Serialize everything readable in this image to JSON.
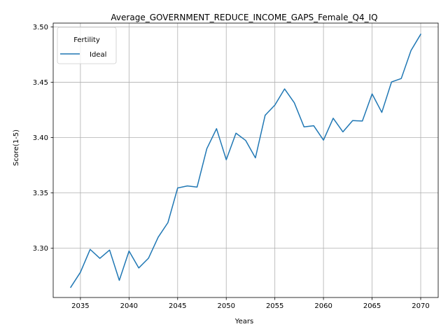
{
  "chart_data": {
    "type": "line",
    "title": "Average_GOVERNMENT_REDUCE_INCOME_GAPS_Female_Q4_IQ",
    "xlabel": "Years",
    "ylabel": "Score(1-5)",
    "xlim": [
      2032.2,
      2071.8
    ],
    "ylim": [
      3.2555,
      3.5035
    ],
    "xticks": [
      2035,
      2040,
      2045,
      2050,
      2055,
      2060,
      2065,
      2070
    ],
    "xtick_labels": [
      "2035",
      "2040",
      "2045",
      "2050",
      "2055",
      "2060",
      "2065",
      "2070"
    ],
    "yticks": [
      3.3,
      3.35,
      3.4,
      3.45,
      3.5
    ],
    "ytick_labels": [
      "3.30",
      "3.35",
      "3.40",
      "3.45",
      "3.50"
    ],
    "grid": true,
    "legend": {
      "title": "Fertility",
      "position": "upper-left"
    },
    "series": [
      {
        "name": "Ideal",
        "color": "#1f77b4",
        "x": [
          2034,
          2035,
          2036,
          2037,
          2038,
          2039,
          2040,
          2041,
          2042,
          2043,
          2044,
          2045,
          2046,
          2047,
          2048,
          2049,
          2050,
          2051,
          2052,
          2053,
          2054,
          2055,
          2056,
          2057,
          2058,
          2059,
          2060,
          2061,
          2062,
          2063,
          2064,
          2065,
          2066,
          2067,
          2068,
          2069,
          2070
        ],
        "y": [
          3.2647,
          3.2783,
          3.299,
          3.2909,
          3.2984,
          3.271,
          3.2975,
          3.2822,
          3.291,
          3.31,
          3.3232,
          3.3545,
          3.3563,
          3.3553,
          3.39,
          3.4081,
          3.38,
          3.404,
          3.3974,
          3.3817,
          3.4202,
          3.4294,
          3.444,
          3.4315,
          3.4097,
          3.4107,
          3.3977,
          3.4175,
          3.4052,
          3.4154,
          3.415,
          3.4395,
          3.4228,
          3.4503,
          3.4534,
          3.4787,
          3.4934
        ]
      }
    ]
  }
}
